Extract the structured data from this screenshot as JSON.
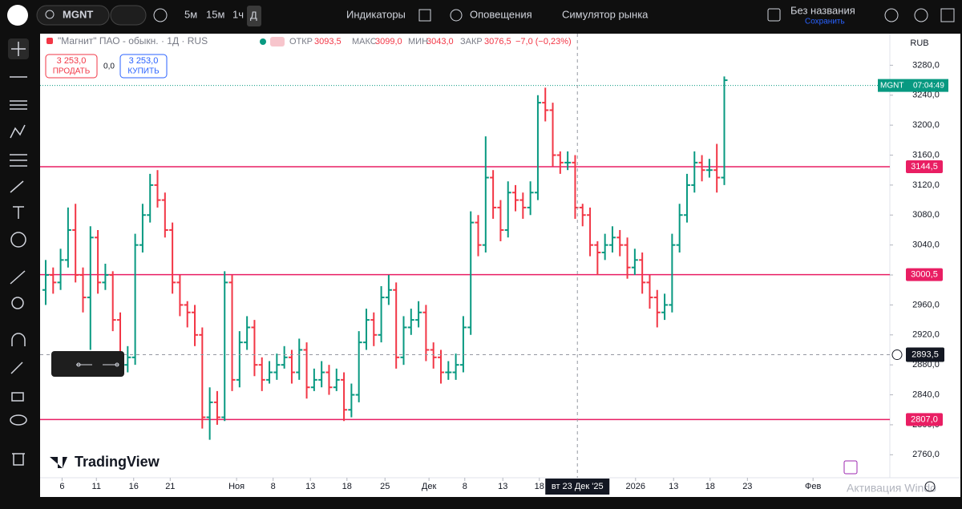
{
  "toolbar": {
    "symbol": "MGNT",
    "intervals": [
      "5м",
      "15м",
      "1ч",
      "Д"
    ],
    "indicators": "Индикаторы",
    "alerts": "Оповещения",
    "replay": "Симулятор рынка",
    "layout_name": "Без названия",
    "save": "Сохранить"
  },
  "legend": {
    "name": "\"Магнит\" ПАО - обыкн. · 1Д · RUS",
    "open_label": "ОТКР",
    "open": "3093,5",
    "high_label": "МАКС",
    "high": "3099,0",
    "low_label": "МИН",
    "low": "3043,0",
    "close_label": "ЗАКР",
    "close": "3076,5",
    "change": "−7,0 (−0,23%)"
  },
  "trade": {
    "sell_price": "3 253,0",
    "sell": "ПРОДАТЬ",
    "spread": "0,0",
    "buy_price": "3 253,0",
    "buy": "КУПИТЬ"
  },
  "logo": "TradingView",
  "watermark": "Активация Windo",
  "chart_data": {
    "type": "ohlc",
    "currency": "RUB",
    "up_color": "#089981",
    "down_color": "#f23645",
    "ohlc": [
      [
        2980,
        3020,
        2960,
        3000
      ],
      [
        3000,
        3010,
        2975,
        2990
      ],
      [
        2990,
        3035,
        2980,
        3020
      ],
      [
        3020,
        3090,
        3010,
        3060
      ],
      [
        3060,
        3095,
        2990,
        3000
      ],
      [
        3000,
        3010,
        2950,
        2970
      ],
      [
        2970,
        3065,
        2900,
        3050
      ],
      [
        3050,
        3060,
        2975,
        2990
      ],
      [
        2990,
        3015,
        2980,
        3000
      ],
      [
        3000,
        3005,
        2925,
        2940
      ],
      [
        2940,
        2950,
        2865,
        2880
      ],
      [
        2880,
        2905,
        2870,
        2890
      ],
      [
        2890,
        3055,
        2880,
        3040
      ],
      [
        3040,
        3095,
        3030,
        3080
      ],
      [
        3080,
        3135,
        3070,
        3120
      ],
      [
        3120,
        3140,
        3090,
        3100
      ],
      [
        3100,
        3110,
        3050,
        3060
      ],
      [
        3060,
        3070,
        2975,
        2990
      ],
      [
        2990,
        3000,
        2945,
        2960
      ],
      [
        2960,
        2965,
        2930,
        2950
      ],
      [
        2950,
        2960,
        2905,
        2920
      ],
      [
        2920,
        2930,
        2795,
        2810
      ],
      [
        2810,
        2850,
        2780,
        2830
      ],
      [
        2830,
        2845,
        2800,
        2810
      ],
      [
        2810,
        3005,
        2805,
        2990
      ],
      [
        2990,
        3000,
        2845,
        2860
      ],
      [
        2860,
        2925,
        2850,
        2910
      ],
      [
        2910,
        2945,
        2900,
        2930
      ],
      [
        2930,
        2940,
        2865,
        2880
      ],
      [
        2880,
        2890,
        2845,
        2860
      ],
      [
        2860,
        2885,
        2855,
        2870
      ],
      [
        2870,
        2895,
        2860,
        2880
      ],
      [
        2880,
        2905,
        2875,
        2890
      ],
      [
        2890,
        2900,
        2855,
        2870
      ],
      [
        2870,
        2915,
        2860,
        2900
      ],
      [
        2900,
        2910,
        2835,
        2850
      ],
      [
        2850,
        2875,
        2845,
        2860
      ],
      [
        2860,
        2885,
        2850,
        2870
      ],
      [
        2870,
        2880,
        2840,
        2850
      ],
      [
        2850,
        2875,
        2845,
        2860
      ],
      [
        2860,
        2870,
        2805,
        2820
      ],
      [
        2820,
        2855,
        2810,
        2840
      ],
      [
        2840,
        2925,
        2830,
        2910
      ],
      [
        2910,
        2955,
        2900,
        2940
      ],
      [
        2940,
        2950,
        2905,
        2920
      ],
      [
        2920,
        2985,
        2910,
        2970
      ],
      [
        2970,
        3000,
        2960,
        2980
      ],
      [
        2980,
        2990,
        2875,
        2890
      ],
      [
        2890,
        2945,
        2880,
        2930
      ],
      [
        2930,
        2955,
        2920,
        2940
      ],
      [
        2940,
        2965,
        2930,
        2950
      ],
      [
        2950,
        2960,
        2885,
        2900
      ],
      [
        2900,
        2910,
        2875,
        2890
      ],
      [
        2890,
        2900,
        2855,
        2870
      ],
      [
        2870,
        2885,
        2860,
        2870
      ],
      [
        2870,
        2895,
        2860,
        2880
      ],
      [
        2880,
        2945,
        2870,
        2930
      ],
      [
        2930,
        3085,
        2920,
        3070
      ],
      [
        3070,
        3080,
        3025,
        3040
      ],
      [
        3040,
        3185,
        3030,
        3130
      ],
      [
        3130,
        3140,
        3075,
        3090
      ],
      [
        3090,
        3100,
        3045,
        3060
      ],
      [
        3060,
        3125,
        3050,
        3110
      ],
      [
        3110,
        3120,
        3085,
        3100
      ],
      [
        3100,
        3110,
        3075,
        3090
      ],
      [
        3090,
        3125,
        3080,
        3110
      ],
      [
        3110,
        3240,
        3100,
        3230
      ],
      [
        3230,
        3250,
        3205,
        3220
      ],
      [
        3220,
        3230,
        3145,
        3160
      ],
      [
        3160,
        3165,
        3135,
        3150
      ],
      [
        3150,
        3165,
        3140,
        3150
      ],
      [
        3150,
        3160,
        3075,
        3090
      ],
      [
        3090,
        3095,
        3065,
        3080
      ],
      [
        3080,
        3090,
        3025,
        3040
      ],
      [
        3040,
        3045,
        3000,
        3030
      ],
      [
        3030,
        3055,
        3020,
        3040
      ],
      [
        3040,
        3065,
        3030,
        3050
      ],
      [
        3050,
        3060,
        3025,
        3040
      ],
      [
        3040,
        3050,
        2995,
        3010
      ],
      [
        3010,
        3035,
        3000,
        3020
      ],
      [
        3020,
        3030,
        2975,
        2990
      ],
      [
        2990,
        3000,
        2955,
        2970
      ],
      [
        2970,
        2980,
        2930,
        2950
      ],
      [
        2950,
        2975,
        2940,
        2960
      ],
      [
        2960,
        3055,
        2950,
        3040
      ],
      [
        3040,
        3095,
        3030,
        3080
      ],
      [
        3080,
        3135,
        3070,
        3120
      ],
      [
        3120,
        3165,
        3110,
        3150
      ],
      [
        3150,
        3160,
        3125,
        3140
      ],
      [
        3140,
        3155,
        3130,
        3140
      ],
      [
        3140,
        3175,
        3110,
        3130
      ],
      [
        3130,
        3265,
        3120,
        3260
      ]
    ],
    "xlim": [
      -0.75,
      113.2
    ],
    "xticks": [
      {
        "value": 2.2,
        "label": "6"
      },
      {
        "value": 6.8,
        "label": "11"
      },
      {
        "value": 11.8,
        "label": "16"
      },
      {
        "value": 16.7,
        "label": "21"
      },
      {
        "value": 25.6,
        "label": "Ноя"
      },
      {
        "value": 30.5,
        "label": "8"
      },
      {
        "value": 35.5,
        "label": "13"
      },
      {
        "value": 40.4,
        "label": "18"
      },
      {
        "value": 45.5,
        "label": "25"
      },
      {
        "value": 51.4,
        "label": "Дек"
      },
      {
        "value": 56.2,
        "label": "8"
      },
      {
        "value": 61.3,
        "label": "13"
      },
      {
        "value": 66.2,
        "label": "18"
      },
      {
        "value": 79.1,
        "label": "2026"
      },
      {
        "value": 84.2,
        "label": "13"
      },
      {
        "value": 89.1,
        "label": "18"
      },
      {
        "value": 94.1,
        "label": "23"
      },
      {
        "value": 102.9,
        "label": "Фев"
      }
    ],
    "ylim": [
      2740,
      3320
    ],
    "yticks": [
      {
        "value": 2760,
        "label": "2760,0"
      },
      {
        "value": 2800,
        "label": "2800,0"
      },
      {
        "value": 2840,
        "label": "2840,0"
      },
      {
        "value": 2880,
        "label": "2880,0"
      },
      {
        "value": 2920,
        "label": "2920,0"
      },
      {
        "value": 2960,
        "label": "2960,0"
      },
      {
        "value": 3000,
        "label": "3000,0"
      },
      {
        "value": 3040,
        "label": "3040,0"
      },
      {
        "value": 3080,
        "label": "3080,0"
      },
      {
        "value": 3120,
        "label": "3120,0"
      },
      {
        "value": 3160,
        "label": "3160,0"
      },
      {
        "value": 3200,
        "label": "3200,0"
      },
      {
        "value": 3240,
        "label": "3240,0"
      },
      {
        "value": 3280,
        "label": "3280,0"
      }
    ],
    "levels": [
      {
        "value": 3144.5,
        "label": "3144,5"
      },
      {
        "value": 3000.5,
        "label": "3000,5"
      },
      {
        "value": 2807,
        "label": "2807,0"
      }
    ],
    "level_color": "#e91e63",
    "last": {
      "value": 3253,
      "symbol": "MGNT",
      "time": "07:04:49",
      "color": "#089981"
    },
    "crosshair": {
      "y": {
        "value": 2893.5,
        "label": "2893,5"
      },
      "x": {
        "value": 71.3,
        "label": "вт 23 Дек '25"
      }
    }
  }
}
